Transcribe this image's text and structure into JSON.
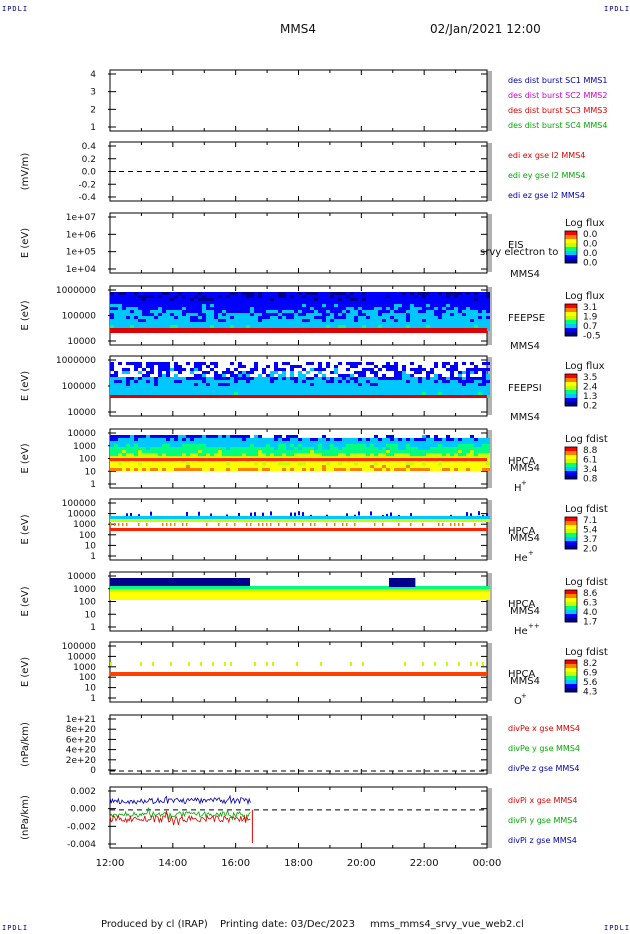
{
  "corners": {
    "tl": "IPDLI",
    "tr": "IPDLI",
    "bl": "IPDLI",
    "br": "IPDLI"
  },
  "header": {
    "title": "MMS4",
    "datetime": "02/Jan/2021 12:00"
  },
  "footer": {
    "producer": "Produced by cl (IRAP)",
    "printing": "Printing date: 03/Dec/2023",
    "script": "mms_mms4_srvy_vue_web2.cl"
  },
  "colors": {
    "mms1": "#0000aa",
    "mms2": "#cc00cc",
    "mms3": "#dd0000",
    "mms4": "#00aa00",
    "black": "#000000"
  },
  "colorbar_colors": [
    "#00008b",
    "#0000ff",
    "#00c8ff",
    "#00ff80",
    "#c8ff00",
    "#ffff00",
    "#ff8000",
    "#ff0000"
  ],
  "chart_data": [
    {
      "type": "line",
      "id": "p1",
      "ylabel": "",
      "yticks": [
        "4",
        "3",
        "2",
        "1"
      ],
      "legend": [
        {
          "text": "des dist burst SC1 MMS1",
          "color": "#0000aa"
        },
        {
          "text": "des dist burst SC2 MMS2",
          "color": "#cc00cc"
        },
        {
          "text": "des dist burst SC3 MMS3",
          "color": "#dd0000"
        },
        {
          "text": "des dist burst SC4 MMS4",
          "color": "#00aa00"
        }
      ]
    },
    {
      "type": "line",
      "id": "p2",
      "ylabel": "(mV/m)",
      "yticks": [
        "0.4",
        "0.2",
        "0.0",
        "-0.2",
        "-0.4"
      ],
      "ylim": [
        -0.4,
        0.4
      ],
      "legend": [
        {
          "text": "edi ex gse l2 MMS4",
          "color": "#dd0000"
        },
        {
          "text": "edi ey gse l2 MMS4",
          "color": "#00aa00"
        },
        {
          "text": "edi ez gse l2 MMS4",
          "color": "#0000aa"
        }
      ]
    },
    {
      "type": "heatmap",
      "id": "p3",
      "ylabel": "E (eV)",
      "yticks": [
        "1e+07",
        "1e+06",
        "1e+05",
        "1e+04"
      ],
      "side": [
        "EIS",
        "srvy electron to",
        "MMS4"
      ],
      "cbar_title": "Log flux",
      "cbar_ticks": [
        "0.0",
        "0.0",
        "0.0",
        "0.0"
      ]
    },
    {
      "type": "heatmap",
      "id": "p4",
      "ylabel": "E (eV)",
      "yticks": [
        "1000000",
        "100000",
        "10000"
      ],
      "side": [
        "FEEPSE",
        "MMS4"
      ],
      "cbar_title": "Log flux",
      "cbar_ticks": [
        "3.1",
        "1.9",
        "0.7",
        "-0.5"
      ]
    },
    {
      "type": "heatmap",
      "id": "p5",
      "ylabel": "E (eV)",
      "yticks": [
        "1000000",
        "100000",
        "10000"
      ],
      "side": [
        "FEEPSI",
        "MMS4"
      ],
      "cbar_title": "Log flux",
      "cbar_ticks": [
        "3.5",
        "2.4",
        "1.3",
        "0.2"
      ]
    },
    {
      "type": "heatmap",
      "id": "p6",
      "ylabel": "E (eV)",
      "yticks": [
        "10000",
        "1000",
        "100",
        "10",
        "1"
      ],
      "side": [
        "HPCA",
        "MMS4",
        "H"
      ],
      "species_sup": "+",
      "cbar_title": "Log fdist",
      "cbar_ticks": [
        "8.8",
        "6.1",
        "3.4",
        "0.8"
      ]
    },
    {
      "type": "heatmap",
      "id": "p7",
      "ylabel": "E (eV)",
      "yticks": [
        "100000",
        "10000",
        "1000",
        "100",
        "10",
        "1"
      ],
      "side": [
        "HPCA",
        "MMS4",
        "He"
      ],
      "species_sup": "+",
      "cbar_title": "Log fdist",
      "cbar_ticks": [
        "7.1",
        "5.4",
        "3.7",
        "2.0"
      ]
    },
    {
      "type": "heatmap",
      "id": "p8",
      "ylabel": "E (eV)",
      "yticks": [
        "10000",
        "1000",
        "100",
        "10",
        "1"
      ],
      "side": [
        "HPCA",
        "MMS4",
        "He"
      ],
      "species_sup": "++",
      "cbar_title": "Log fdist",
      "cbar_ticks": [
        "8.6",
        "6.3",
        "4.0",
        "1.7"
      ]
    },
    {
      "type": "heatmap",
      "id": "p9",
      "ylabel": "E (eV)",
      "yticks": [
        "100000",
        "10000",
        "1000",
        "100",
        "10",
        "1"
      ],
      "side": [
        "HPCA",
        "MMS4",
        "O"
      ],
      "species_sup": "+",
      "cbar_title": "Log fdist",
      "cbar_ticks": [
        "8.2",
        "6.9",
        "5.6",
        "4.3"
      ]
    },
    {
      "type": "line",
      "id": "p10",
      "ylabel": "(nPa/km)",
      "yticks": [
        "1e+21",
        "8e+20",
        "6e+20",
        "4e+20",
        "2e+20",
        "0"
      ],
      "legend": [
        {
          "text": "divPe x gse MMS4",
          "color": "#dd0000"
        },
        {
          "text": "divPe y gse MMS4",
          "color": "#00aa00"
        },
        {
          "text": "divPe z gse MMS4",
          "color": "#0000aa"
        }
      ]
    },
    {
      "type": "line",
      "id": "p11",
      "ylabel": "(nPa/km)",
      "yticks": [
        "0.002",
        "0.000",
        "-0.002",
        "-0.004"
      ],
      "ylim": [
        -0.005,
        0.003
      ],
      "legend": [
        {
          "text": "divPi x gse MMS4",
          "color": "#dd0000"
        },
        {
          "text": "divPi y gse MMS4",
          "color": "#00aa00"
        },
        {
          "text": "divPi z gse MMS4",
          "color": "#0000aa"
        }
      ]
    }
  ],
  "xaxis": {
    "ticks": [
      "12:00",
      "14:00",
      "16:00",
      "18:00",
      "20:00",
      "22:00",
      "00:00"
    ],
    "range": [
      "12:00",
      "00:00"
    ]
  }
}
